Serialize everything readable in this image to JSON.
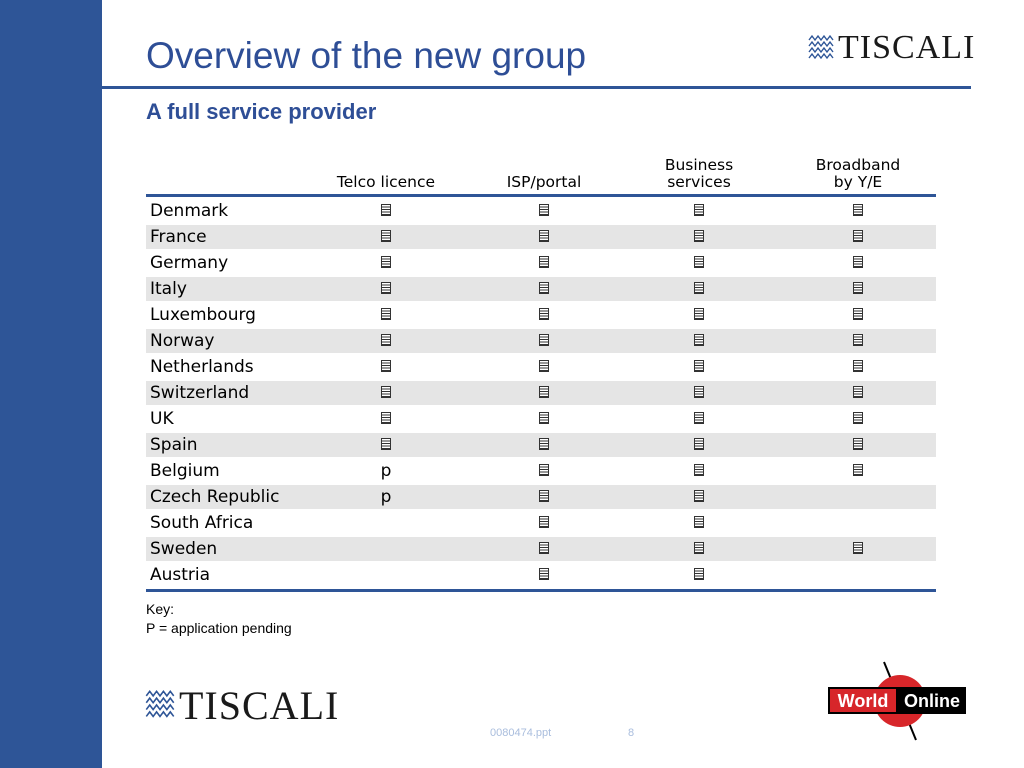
{
  "slide": {
    "title": "Overview of the new group",
    "subtitle": "A full service provider",
    "brand_color": "#2e5597"
  },
  "logos": {
    "tiscali_text": "TISCALI",
    "world_online_word1": "World",
    "world_online_word2": "Online"
  },
  "table": {
    "headers": {
      "telco": "Telco licence",
      "isp": "ISP/portal",
      "business_line1": "Business",
      "business_line2": "services",
      "broadband_line1": "Broadband",
      "broadband_line2": "by Y/E"
    },
    "rows": [
      {
        "country": "Denmark",
        "telco": "check",
        "isp": "check",
        "business": "check",
        "broadband": "check"
      },
      {
        "country": "France",
        "telco": "check",
        "isp": "check",
        "business": "check",
        "broadband": "check"
      },
      {
        "country": "Germany",
        "telco": "check",
        "isp": "check",
        "business": "check",
        "broadband": "check"
      },
      {
        "country": "Italy",
        "telco": "check",
        "isp": "check",
        "business": "check",
        "broadband": "check"
      },
      {
        "country": "Luxembourg",
        "telco": "check",
        "isp": "check",
        "business": "check",
        "broadband": "check"
      },
      {
        "country": "Norway",
        "telco": "check",
        "isp": "check",
        "business": "check",
        "broadband": "check"
      },
      {
        "country": "Netherlands",
        "telco": "check",
        "isp": "check",
        "business": "check",
        "broadband": "check"
      },
      {
        "country": "Switzerland",
        "telco": "check",
        "isp": "check",
        "business": "check",
        "broadband": "check"
      },
      {
        "country": "UK",
        "telco": "check",
        "isp": "check",
        "business": "check",
        "broadband": "check"
      },
      {
        "country": "Spain",
        "telco": "check",
        "isp": "check",
        "business": "check",
        "broadband": "check"
      },
      {
        "country": "Belgium",
        "telco": "p",
        "isp": "check",
        "business": "check",
        "broadband": "check"
      },
      {
        "country": "Czech Republic",
        "telco": "p",
        "isp": "check",
        "business": "check",
        "broadband": ""
      },
      {
        "country": "South Africa",
        "telco": "",
        "isp": "check",
        "business": "check",
        "broadband": ""
      },
      {
        "country": "Sweden",
        "telco": "",
        "isp": "check",
        "business": "check",
        "broadband": "check"
      },
      {
        "country": "Austria",
        "telco": "",
        "isp": "check",
        "business": "check",
        "broadband": ""
      }
    ]
  },
  "key": {
    "line1": "Key:",
    "line2": "P = application pending"
  },
  "footer": {
    "file": "0080474.ppt",
    "page": "8"
  }
}
